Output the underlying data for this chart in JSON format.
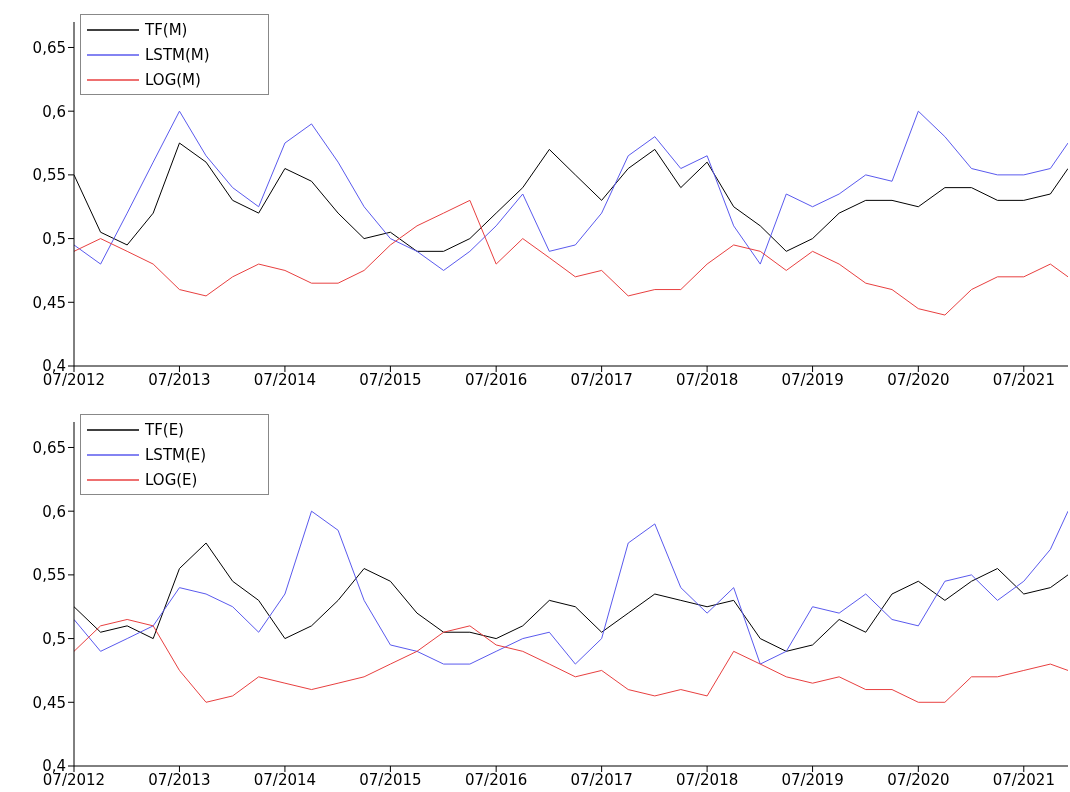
{
  "chart_data": [
    {
      "type": "line",
      "x": [
        "2012-07",
        "2012-10",
        "2013-01",
        "2013-04",
        "2013-07",
        "2013-10",
        "2014-01",
        "2014-04",
        "2014-07",
        "2014-10",
        "2015-01",
        "2015-04",
        "2015-07",
        "2015-10",
        "2016-01",
        "2016-04",
        "2016-07",
        "2016-10",
        "2017-01",
        "2017-04",
        "2017-07",
        "2017-10",
        "2018-01",
        "2018-04",
        "2018-07",
        "2018-10",
        "2019-01",
        "2019-04",
        "2019-07",
        "2019-10",
        "2020-01",
        "2020-04",
        "2020-07",
        "2020-10",
        "2021-01",
        "2021-04",
        "2021-07",
        "2021-10",
        "2021-12"
      ],
      "series": [
        {
          "name": "TF(M)",
          "color": "#000000",
          "values": [
            0.55,
            0.505,
            0.495,
            0.52,
            0.575,
            0.56,
            0.53,
            0.52,
            0.555,
            0.545,
            0.52,
            0.5,
            0.505,
            0.49,
            0.49,
            0.5,
            0.52,
            0.54,
            0.57,
            0.55,
            0.53,
            0.555,
            0.57,
            0.54,
            0.56,
            0.525,
            0.51,
            0.49,
            0.5,
            0.52,
            0.53,
            0.53,
            0.525,
            0.54,
            0.54,
            0.53,
            0.53,
            0.535,
            0.555
          ]
        },
        {
          "name": "LSTM(M)",
          "color": "#5a5aee",
          "values": [
            0.495,
            0.48,
            0.52,
            0.56,
            0.6,
            0.565,
            0.54,
            0.525,
            0.575,
            0.59,
            0.56,
            0.525,
            0.5,
            0.49,
            0.475,
            0.49,
            0.51,
            0.535,
            0.49,
            0.495,
            0.52,
            0.565,
            0.58,
            0.555,
            0.565,
            0.51,
            0.48,
            0.535,
            0.525,
            0.535,
            0.55,
            0.545,
            0.6,
            0.58,
            0.555,
            0.55,
            0.55,
            0.555,
            0.575
          ]
        },
        {
          "name": "LOG(M)",
          "color": "#e84040",
          "values": [
            0.49,
            0.5,
            0.49,
            0.48,
            0.46,
            0.455,
            0.47,
            0.48,
            0.475,
            0.465,
            0.465,
            0.475,
            0.495,
            0.51,
            0.52,
            0.53,
            0.48,
            0.5,
            0.485,
            0.47,
            0.475,
            0.455,
            0.46,
            0.46,
            0.48,
            0.495,
            0.49,
            0.475,
            0.49,
            0.48,
            0.465,
            0.46,
            0.445,
            0.44,
            0.46,
            0.47,
            0.47,
            0.48,
            0.47
          ]
        }
      ],
      "xlim": [
        "2012-07",
        "2021-12"
      ],
      "xticks": [
        {
          "value": "2012-07",
          "label": "07/2012"
        },
        {
          "value": "2013-07",
          "label": "07/2013"
        },
        {
          "value": "2014-07",
          "label": "07/2014"
        },
        {
          "value": "2015-07",
          "label": "07/2015"
        },
        {
          "value": "2016-07",
          "label": "07/2016"
        },
        {
          "value": "2017-07",
          "label": "07/2017"
        },
        {
          "value": "2018-07",
          "label": "07/2018"
        },
        {
          "value": "2019-07",
          "label": "07/2019"
        },
        {
          "value": "2020-07",
          "label": "07/2020"
        },
        {
          "value": "2021-07",
          "label": "07/2021"
        }
      ],
      "ylim": [
        0.4,
        0.67
      ],
      "yticks": [
        {
          "value": 0.4,
          "label": "0,4"
        },
        {
          "value": 0.45,
          "label": "0,45"
        },
        {
          "value": 0.5,
          "label": "0,5"
        },
        {
          "value": 0.55,
          "label": "0,55"
        },
        {
          "value": 0.6,
          "label": "0,6"
        },
        {
          "value": 0.65,
          "label": "0,65"
        }
      ],
      "legend": "top left",
      "grid": false,
      "marker": "none",
      "line_style": "solid"
    },
    {
      "type": "line",
      "x": [
        "2012-07",
        "2012-10",
        "2013-01",
        "2013-04",
        "2013-07",
        "2013-10",
        "2014-01",
        "2014-04",
        "2014-07",
        "2014-10",
        "2015-01",
        "2015-04",
        "2015-07",
        "2015-10",
        "2016-01",
        "2016-04",
        "2016-07",
        "2016-10",
        "2017-01",
        "2017-04",
        "2017-07",
        "2017-10",
        "2018-01",
        "2018-04",
        "2018-07",
        "2018-10",
        "2019-01",
        "2019-04",
        "2019-07",
        "2019-10",
        "2020-01",
        "2020-04",
        "2020-07",
        "2020-10",
        "2021-01",
        "2021-04",
        "2021-07",
        "2021-10",
        "2021-12"
      ],
      "series": [
        {
          "name": "TF(E)",
          "color": "#000000",
          "values": [
            0.525,
            0.505,
            0.51,
            0.5,
            0.555,
            0.575,
            0.545,
            0.53,
            0.5,
            0.51,
            0.53,
            0.555,
            0.545,
            0.52,
            0.505,
            0.505,
            0.5,
            0.51,
            0.53,
            0.525,
            0.505,
            0.52,
            0.535,
            0.53,
            0.525,
            0.53,
            0.5,
            0.49,
            0.495,
            0.515,
            0.505,
            0.535,
            0.545,
            0.53,
            0.545,
            0.555,
            0.535,
            0.54,
            0.55
          ]
        },
        {
          "name": "LSTM(E)",
          "color": "#5a5aee",
          "values": [
            0.515,
            0.49,
            0.5,
            0.51,
            0.54,
            0.535,
            0.525,
            0.505,
            0.535,
            0.6,
            0.585,
            0.53,
            0.495,
            0.49,
            0.48,
            0.48,
            0.49,
            0.5,
            0.505,
            0.48,
            0.5,
            0.575,
            0.59,
            0.54,
            0.52,
            0.54,
            0.48,
            0.49,
            0.525,
            0.52,
            0.535,
            0.515,
            0.51,
            0.545,
            0.55,
            0.53,
            0.545,
            0.57,
            0.6
          ]
        },
        {
          "name": "LOG(E)",
          "color": "#e84040",
          "values": [
            0.49,
            0.51,
            0.515,
            0.51,
            0.475,
            0.45,
            0.455,
            0.47,
            0.465,
            0.46,
            0.465,
            0.47,
            0.48,
            0.49,
            0.505,
            0.51,
            0.495,
            0.49,
            0.48,
            0.47,
            0.475,
            0.46,
            0.455,
            0.46,
            0.455,
            0.49,
            0.48,
            0.47,
            0.465,
            0.47,
            0.46,
            0.46,
            0.45,
            0.45,
            0.47,
            0.47,
            0.475,
            0.48,
            0.475
          ]
        }
      ],
      "xlim": [
        "2012-07",
        "2021-12"
      ],
      "xticks": [
        {
          "value": "2012-07",
          "label": "07/2012"
        },
        {
          "value": "2013-07",
          "label": "07/2013"
        },
        {
          "value": "2014-07",
          "label": "07/2014"
        },
        {
          "value": "2015-07",
          "label": "07/2015"
        },
        {
          "value": "2016-07",
          "label": "07/2016"
        },
        {
          "value": "2017-07",
          "label": "07/2017"
        },
        {
          "value": "2018-07",
          "label": "07/2018"
        },
        {
          "value": "2019-07",
          "label": "07/2019"
        },
        {
          "value": "2020-07",
          "label": "07/2020"
        },
        {
          "value": "2021-07",
          "label": "07/2021"
        }
      ],
      "ylim": [
        0.4,
        0.67
      ],
      "yticks": [
        {
          "value": 0.4,
          "label": "0,4"
        },
        {
          "value": 0.45,
          "label": "0,45"
        },
        {
          "value": 0.5,
          "label": "0,5"
        },
        {
          "value": 0.55,
          "label": "0,55"
        },
        {
          "value": 0.6,
          "label": "0,6"
        },
        {
          "value": 0.65,
          "label": "0,65"
        }
      ],
      "legend": "top left",
      "grid": false,
      "marker": "none",
      "line_style": "solid"
    }
  ]
}
